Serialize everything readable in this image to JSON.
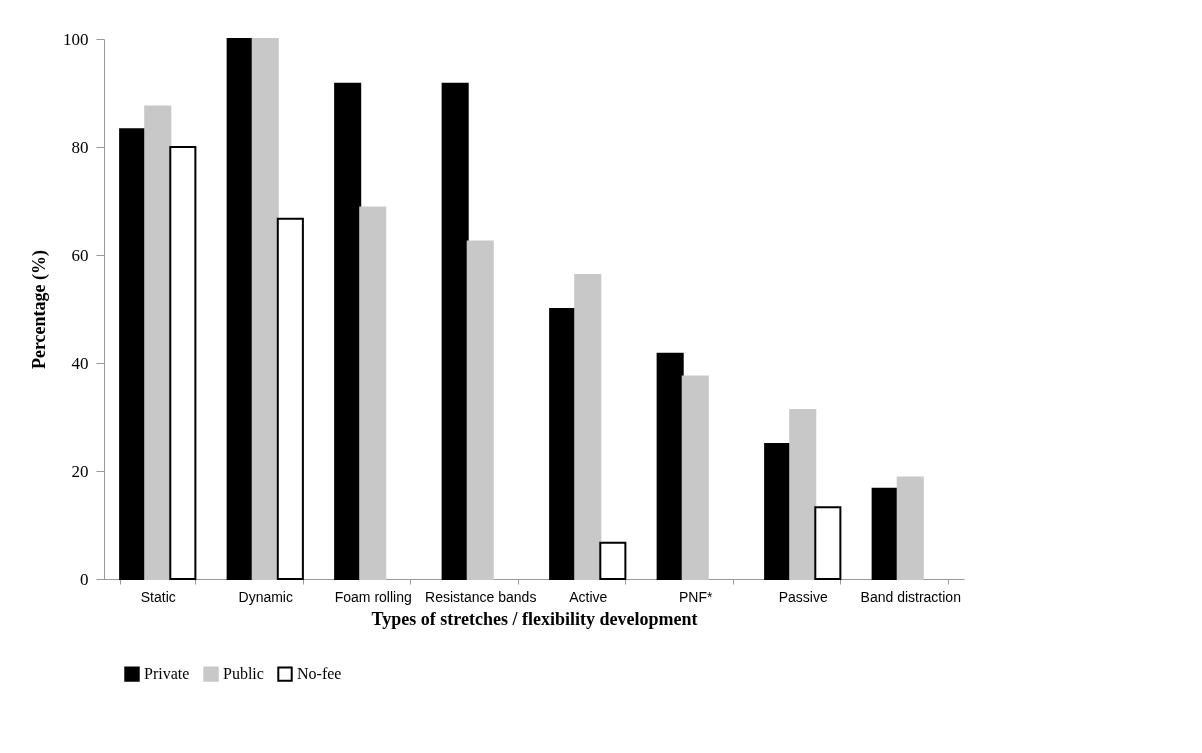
{
  "chart_data": {
    "type": "bar",
    "xlabel": "Types of stretches / flexibility development",
    "ylabel": "Percentage (%)",
    "categories": [
      "Static",
      "Dynamic",
      "Foam rolling",
      "Resistance bands",
      "Active",
      "PNF*",
      "Passive",
      "Band distraction"
    ],
    "series": [
      {
        "name": "Private",
        "color": "#000000",
        "values": [
          83.3,
          100,
          91.7,
          91.7,
          50,
          41.7,
          25,
          16.7
        ]
      },
      {
        "name": "Public",
        "color": "#c8c8c8",
        "values": [
          87.5,
          100,
          68.8,
          62.5,
          56.3,
          37.5,
          31.3,
          18.8
        ]
      },
      {
        "name": "No-fee",
        "color": "#ffffff",
        "values": [
          80,
          66.7,
          null,
          null,
          6.7,
          null,
          13.3,
          null
        ]
      }
    ],
    "ylim": [
      0,
      100
    ],
    "yticks": [
      0,
      20,
      40,
      60,
      80,
      100
    ],
    "grid": false,
    "legend": "bottom"
  }
}
